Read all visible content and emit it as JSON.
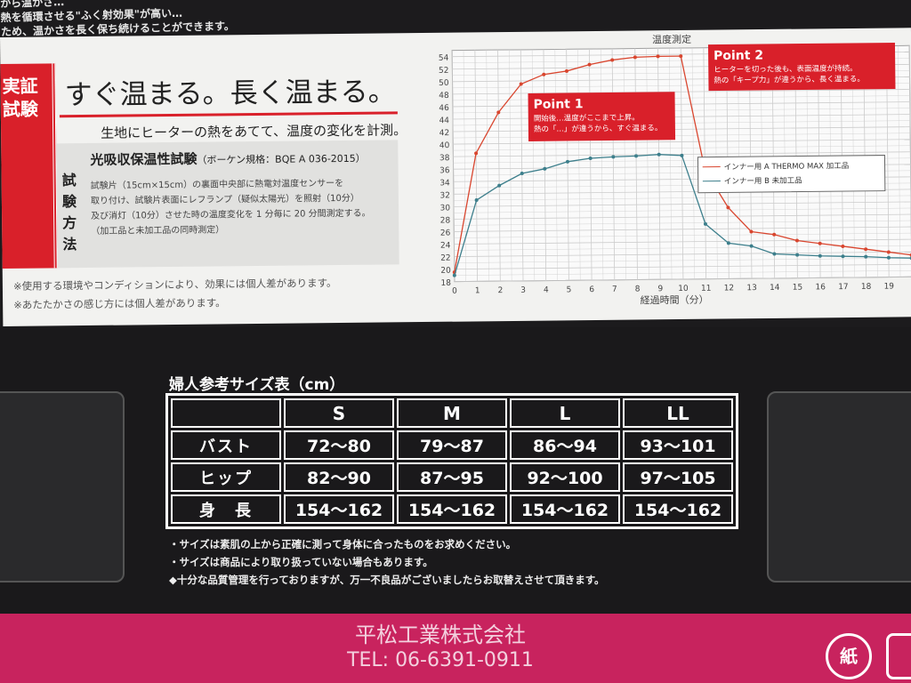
{
  "top_text": [
    "から温かさ…",
    "熱を循環させる\"ふく射効果\"が高い…",
    "ため、温かさを長く保ち続けることができます。"
  ],
  "proof_tab": "実証試験",
  "heading": "すぐ温まる。長く温まる。",
  "subheading": "生地にヒーターの熱をあてて、温度の変化を計測。",
  "method_label": "試験方法",
  "test_name": "光吸収保温性試験",
  "test_standard": "（ボーケン規格：BQE A 036-2015）",
  "test_description": [
    "試験片（15cm×15cm）の裏面中央部に熱電対温度センサーを",
    "取り付け、試験片表面にレフランプ（疑似太陽光）を照射（10分）",
    "及び消灯（10分）させた時の温度変化を 1 分毎に 20 分間測定する。",
    "（加工品と未加工品の同時測定）"
  ],
  "notes": [
    "※使用する環境やコンディションにより、効果には個人差があります。",
    "※あたたかさの感じ方には個人差があります。"
  ],
  "chart_data": {
    "type": "line",
    "title": "温度測定",
    "xlabel": "経過時間（分）",
    "ylabel": "",
    "x": [
      0,
      1,
      2,
      3,
      4,
      5,
      6,
      7,
      8,
      9,
      10,
      11,
      12,
      13,
      14,
      15,
      16,
      17,
      18,
      19,
      20
    ],
    "xticks": [
      0,
      1,
      2,
      3,
      4,
      5,
      6,
      7,
      8,
      9,
      10,
      11,
      12,
      13,
      14,
      15,
      16,
      17,
      18,
      19
    ],
    "yticks": [
      18,
      20,
      22,
      24,
      26,
      28,
      30,
      32,
      34,
      36,
      38,
      40,
      42,
      44,
      46,
      48,
      50,
      52,
      54
    ],
    "xlim": [
      0,
      20
    ],
    "ylim": [
      18,
      55
    ],
    "grid": true,
    "legend": "right",
    "series": [
      {
        "name": "インナー用 A THERMO MAX 加工品",
        "color": "#d9462f",
        "values": [
          19.5,
          38.5,
          45,
          49.5,
          51,
          51.5,
          52.5,
          53.2,
          53.6,
          53.7,
          53.7,
          35.5,
          29.4,
          25.5,
          25,
          24,
          23.5,
          23,
          22.5,
          22,
          21.5
        ]
      },
      {
        "name": "インナー用 B 未加工品",
        "color": "#3d7f8c",
        "values": [
          19,
          31,
          33.3,
          35.2,
          35.9,
          37,
          37.5,
          37.7,
          37.8,
          38,
          37.8,
          26.8,
          23.7,
          23.2,
          21.9,
          21.7,
          21.5,
          21.4,
          21.3,
          21.1,
          21
        ]
      }
    ],
    "annotations": [
      {
        "title": "Point 1",
        "lines": [
          "開始後…温度がここまで上昇。",
          "熱の「…」が違うから、すぐ温まる。"
        ]
      },
      {
        "title": "Point 2",
        "lines": [
          "ヒーターを切った後も、表面温度が持続。",
          "熱の「キープ力」が違うから、長く温まる。"
        ]
      }
    ]
  },
  "size_table": {
    "title": "婦人参考サイズ表（cm）",
    "columns": [
      "S",
      "M",
      "L",
      "LL"
    ],
    "rows": [
      {
        "label": "バスト",
        "values": [
          "72〜80",
          "79〜87",
          "86〜94",
          "93〜101"
        ]
      },
      {
        "label": "ヒップ",
        "values": [
          "82〜90",
          "87〜95",
          "92〜100",
          "97〜105"
        ]
      },
      {
        "label": "身　長",
        "values": [
          "154〜162",
          "154〜162",
          "154〜162",
          "154〜162"
        ]
      }
    ]
  },
  "size_notes": [
    "・サイズは素肌の上から正確に測って身体に合ったものをお求めください。",
    "・サイズは商品により取り扱っていない場合もあります。",
    "◆十分な品質管理を行っておりますが、万一不良品がございましたらお取替えさせて頂きます。"
  ],
  "company": "平松工業株式会社",
  "tel": "TEL: 06-6391-0911",
  "recycle_mark": "紙",
  "colors": {
    "accent_red": "#d9202a",
    "pink_band": "#c8235e"
  }
}
